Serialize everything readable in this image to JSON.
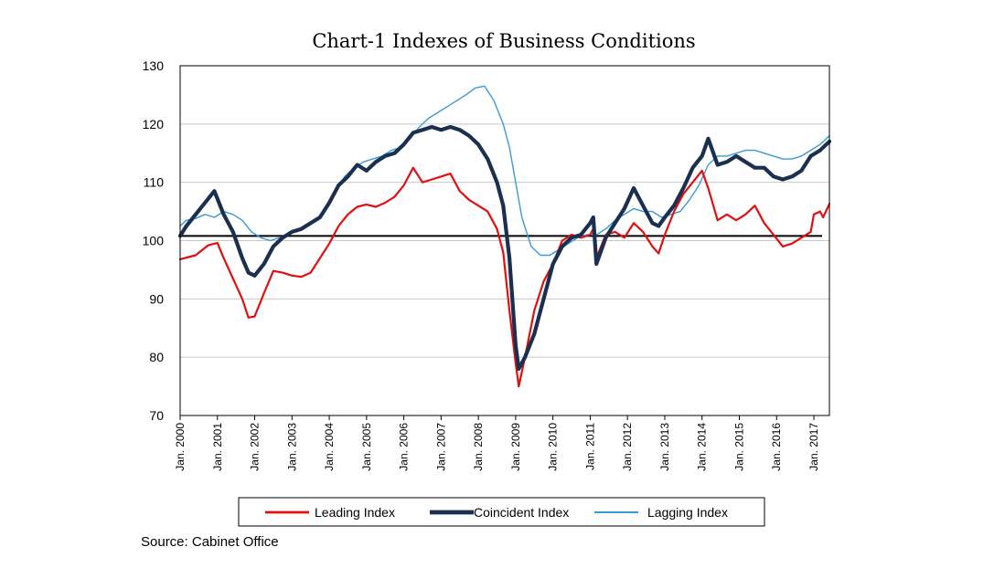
{
  "chart_data": {
    "type": "line",
    "title": "Chart-1 Indexes of Business Conditions",
    "xlabel": "",
    "ylabel": "",
    "ylim": [
      70,
      130
    ],
    "yticks": [
      70,
      80,
      90,
      100,
      110,
      120,
      130
    ],
    "xlim": [
      "2000-01",
      "2017-06"
    ],
    "xticks": [
      "Jan. 2000",
      "Jan. 2001",
      "Jan. 2002",
      "Jan. 2003",
      "Jan. 2004",
      "Jan. 2005",
      "Jan. 2006",
      "Jan. 2007",
      "Jan. 2008",
      "Jan. 2009",
      "Jan. 2010",
      "Jan. 2011",
      "Jan. 2012",
      "Jan. 2013",
      "Jan. 2014",
      "Jan. 2015",
      "Jan. 2016",
      "Jan. 2017"
    ],
    "grid": true,
    "reference_line": 100.8,
    "legend": "bottom",
    "series": [
      {
        "name": "Leading Index",
        "color": "#e01010",
        "points": [
          [
            "2000-01",
            96.8
          ],
          [
            "2000-06",
            97.5
          ],
          [
            "2000-10",
            99.2
          ],
          [
            "2001-01",
            99.6
          ],
          [
            "2001-03",
            97
          ],
          [
            "2001-06",
            93.5
          ],
          [
            "2001-09",
            90
          ],
          [
            "2001-11",
            86.8
          ],
          [
            "2002-01",
            87
          ],
          [
            "2002-04",
            91
          ],
          [
            "2002-07",
            94.8
          ],
          [
            "2002-10",
            94.5
          ],
          [
            "2003-01",
            94
          ],
          [
            "2003-04",
            93.8
          ],
          [
            "2003-07",
            94.5
          ],
          [
            "2003-10",
            97
          ],
          [
            "2004-01",
            99.5
          ],
          [
            "2004-04",
            102.5
          ],
          [
            "2004-07",
            104.5
          ],
          [
            "2004-10",
            105.8
          ],
          [
            "2005-01",
            106.2
          ],
          [
            "2005-04",
            105.8
          ],
          [
            "2005-07",
            106.5
          ],
          [
            "2005-10",
            107.5
          ],
          [
            "2006-01",
            109.5
          ],
          [
            "2006-04",
            112.5
          ],
          [
            "2006-07",
            110
          ],
          [
            "2006-10",
            110.5
          ],
          [
            "2007-01",
            111
          ],
          [
            "2007-04",
            111.5
          ],
          [
            "2007-07",
            108.5
          ],
          [
            "2007-10",
            107
          ],
          [
            "2008-01",
            106
          ],
          [
            "2008-04",
            105
          ],
          [
            "2008-07",
            102
          ],
          [
            "2008-09",
            98
          ],
          [
            "2008-11",
            88
          ],
          [
            "2009-01",
            79
          ],
          [
            "2009-02",
            75
          ],
          [
            "2009-04",
            80
          ],
          [
            "2009-07",
            88
          ],
          [
            "2009-10",
            93
          ],
          [
            "2010-01",
            96
          ],
          [
            "2010-04",
            100
          ],
          [
            "2010-07",
            101
          ],
          [
            "2010-10",
            100.5
          ],
          [
            "2011-01",
            101
          ],
          [
            "2011-02",
            102
          ],
          [
            "2011-03",
            97
          ],
          [
            "2011-06",
            101
          ],
          [
            "2011-09",
            101.5
          ],
          [
            "2011-12",
            100.5
          ],
          [
            "2012-03",
            103
          ],
          [
            "2012-06",
            101.5
          ],
          [
            "2012-09",
            99
          ],
          [
            "2012-11",
            97.8
          ],
          [
            "2013-01",
            101
          ],
          [
            "2013-04",
            105
          ],
          [
            "2013-07",
            108
          ],
          [
            "2013-10",
            110
          ],
          [
            "2014-01",
            112
          ],
          [
            "2014-03",
            109
          ],
          [
            "2014-06",
            103.5
          ],
          [
            "2014-09",
            104.5
          ],
          [
            "2014-12",
            103.5
          ],
          [
            "2015-03",
            104.5
          ],
          [
            "2015-06",
            106
          ],
          [
            "2015-09",
            103
          ],
          [
            "2015-12",
            101
          ],
          [
            "2016-03",
            99
          ],
          [
            "2016-06",
            99.5
          ],
          [
            "2016-09",
            100.5
          ],
          [
            "2016-12",
            101.5
          ],
          [
            "2017-01",
            104.5
          ],
          [
            "2017-03",
            105
          ],
          [
            "2017-04",
            104
          ],
          [
            "2017-06",
            106.3
          ]
        ]
      },
      {
        "name": "Coincident Index",
        "color": "#1b3050",
        "points": [
          [
            "2000-01",
            100.8
          ],
          [
            "2000-03",
            102.5
          ],
          [
            "2000-06",
            104.5
          ],
          [
            "2000-09",
            106.5
          ],
          [
            "2000-12",
            108.5
          ],
          [
            "2001-03",
            104.5
          ],
          [
            "2001-06",
            101.5
          ],
          [
            "2001-09",
            97
          ],
          [
            "2001-11",
            94.5
          ],
          [
            "2002-01",
            94
          ],
          [
            "2002-04",
            96
          ],
          [
            "2002-07",
            99
          ],
          [
            "2002-10",
            100.5
          ],
          [
            "2003-01",
            101.5
          ],
          [
            "2003-04",
            102
          ],
          [
            "2003-07",
            103
          ],
          [
            "2003-10",
            104
          ],
          [
            "2004-01",
            106.5
          ],
          [
            "2004-04",
            109.5
          ],
          [
            "2004-07",
            111
          ],
          [
            "2004-10",
            113
          ],
          [
            "2005-01",
            112
          ],
          [
            "2005-04",
            113.5
          ],
          [
            "2005-07",
            114.5
          ],
          [
            "2005-10",
            115
          ],
          [
            "2006-01",
            116.5
          ],
          [
            "2006-04",
            118.5
          ],
          [
            "2006-07",
            119
          ],
          [
            "2006-10",
            119.5
          ],
          [
            "2007-01",
            119
          ],
          [
            "2007-04",
            119.5
          ],
          [
            "2007-07",
            119
          ],
          [
            "2007-10",
            118
          ],
          [
            "2008-01",
            116.5
          ],
          [
            "2008-04",
            114
          ],
          [
            "2008-07",
            110
          ],
          [
            "2008-09",
            106
          ],
          [
            "2008-11",
            97
          ],
          [
            "2009-01",
            82
          ],
          [
            "2009-02",
            78
          ],
          [
            "2009-04",
            80
          ],
          [
            "2009-07",
            84
          ],
          [
            "2009-10",
            90
          ],
          [
            "2010-01",
            96
          ],
          [
            "2010-04",
            99
          ],
          [
            "2010-07",
            100.5
          ],
          [
            "2010-10",
            101
          ],
          [
            "2011-01",
            103
          ],
          [
            "2011-02",
            104
          ],
          [
            "2011-03",
            96
          ],
          [
            "2011-06",
            100.5
          ],
          [
            "2011-09",
            103
          ],
          [
            "2011-12",
            105.5
          ],
          [
            "2012-03",
            109
          ],
          [
            "2012-06",
            106
          ],
          [
            "2012-09",
            103
          ],
          [
            "2012-11",
            102.5
          ],
          [
            "2013-01",
            104
          ],
          [
            "2013-04",
            106
          ],
          [
            "2013-07",
            109
          ],
          [
            "2013-10",
            112.5
          ],
          [
            "2014-01",
            114.5
          ],
          [
            "2014-03",
            117.5
          ],
          [
            "2014-06",
            113
          ],
          [
            "2014-09",
            113.5
          ],
          [
            "2014-12",
            114.5
          ],
          [
            "2015-03",
            113.5
          ],
          [
            "2015-06",
            112.5
          ],
          [
            "2015-09",
            112.5
          ],
          [
            "2015-12",
            111
          ],
          [
            "2016-03",
            110.5
          ],
          [
            "2016-06",
            111
          ],
          [
            "2016-09",
            112
          ],
          [
            "2016-12",
            114.5
          ],
          [
            "2017-03",
            115.5
          ],
          [
            "2017-06",
            117
          ]
        ]
      },
      {
        "name": "Lagging Index",
        "color": "#3a9ad6",
        "points": [
          [
            "2000-01",
            102.5
          ],
          [
            "2000-03",
            103.5
          ],
          [
            "2000-06",
            103.8
          ],
          [
            "2000-09",
            104.5
          ],
          [
            "2000-12",
            104
          ],
          [
            "2001-03",
            105
          ],
          [
            "2001-06",
            104.5
          ],
          [
            "2001-09",
            103.5
          ],
          [
            "2001-12",
            101.5
          ],
          [
            "2002-03",
            100.5
          ],
          [
            "2002-06",
            100
          ],
          [
            "2002-09",
            100.5
          ],
          [
            "2002-12",
            101
          ],
          [
            "2003-03",
            102
          ],
          [
            "2003-06",
            102.5
          ],
          [
            "2003-09",
            103.5
          ],
          [
            "2003-12",
            106
          ],
          [
            "2004-03",
            108.5
          ],
          [
            "2004-06",
            111
          ],
          [
            "2004-09",
            112.5
          ],
          [
            "2004-12",
            113.5
          ],
          [
            "2005-03",
            114
          ],
          [
            "2005-06",
            114.5
          ],
          [
            "2005-09",
            115.5
          ],
          [
            "2005-12",
            116
          ],
          [
            "2006-03",
            117.5
          ],
          [
            "2006-06",
            119.5
          ],
          [
            "2006-09",
            121
          ],
          [
            "2006-12",
            122
          ],
          [
            "2007-03",
            123
          ],
          [
            "2007-06",
            124
          ],
          [
            "2007-09",
            125
          ],
          [
            "2007-12",
            126.2
          ],
          [
            "2008-03",
            126.5
          ],
          [
            "2008-06",
            124
          ],
          [
            "2008-09",
            120
          ],
          [
            "2008-11",
            116
          ],
          [
            "2009-01",
            110
          ],
          [
            "2009-03",
            104
          ],
          [
            "2009-06",
            99
          ],
          [
            "2009-09",
            97.5
          ],
          [
            "2009-12",
            97.5
          ],
          [
            "2010-03",
            98.5
          ],
          [
            "2010-06",
            99.5
          ],
          [
            "2010-09",
            100.5
          ],
          [
            "2010-12",
            101
          ],
          [
            "2011-03",
            101
          ],
          [
            "2011-06",
            102
          ],
          [
            "2011-09",
            103.5
          ],
          [
            "2011-12",
            104.5
          ],
          [
            "2012-03",
            105.5
          ],
          [
            "2012-06",
            105
          ],
          [
            "2012-09",
            105
          ],
          [
            "2012-12",
            104
          ],
          [
            "2013-03",
            104.5
          ],
          [
            "2013-06",
            105
          ],
          [
            "2013-09",
            107
          ],
          [
            "2013-12",
            109.5
          ],
          [
            "2014-03",
            113
          ],
          [
            "2014-06",
            114.5
          ],
          [
            "2014-09",
            114.5
          ],
          [
            "2014-12",
            115
          ],
          [
            "2015-03",
            115.5
          ],
          [
            "2015-06",
            115.5
          ],
          [
            "2015-09",
            115
          ],
          [
            "2015-12",
            114.5
          ],
          [
            "2016-03",
            114
          ],
          [
            "2016-06",
            114
          ],
          [
            "2016-09",
            114.5
          ],
          [
            "2016-12",
            115.5
          ],
          [
            "2017-03",
            116.5
          ],
          [
            "2017-06",
            118
          ]
        ]
      }
    ]
  },
  "source": "Source: Cabinet Office"
}
